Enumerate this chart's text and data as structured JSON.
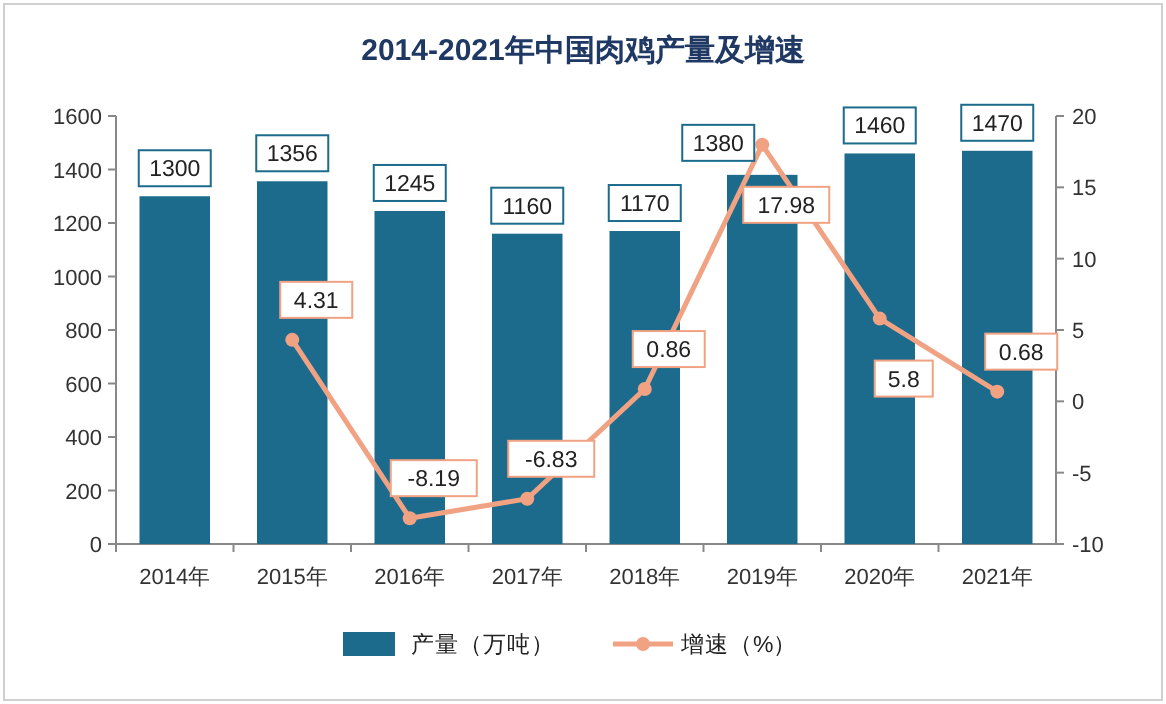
{
  "chart_data": {
    "type": "bar",
    "title": "2014-2021年中国肉鸡产量及增速",
    "categories": [
      "2014年",
      "2015年",
      "2016年",
      "2017年",
      "2018年",
      "2019年",
      "2020年",
      "2021年"
    ],
    "series": [
      {
        "name": "产量（万吨）",
        "type": "bar",
        "color": "#1c6b8c",
        "values": [
          1300,
          1356,
          1245,
          1160,
          1170,
          1380,
          1460,
          1470
        ]
      },
      {
        "name": "增速（%）",
        "type": "line",
        "axis": "y2",
        "color": "#f0a283",
        "marker": "circle",
        "values": [
          null,
          4.31,
          -8.19,
          -6.83,
          0.86,
          17.98,
          5.8,
          0.68
        ]
      }
    ],
    "ylim": [
      0,
      1600
    ],
    "yticks": [
      0,
      200,
      400,
      600,
      800,
      1000,
      1200,
      1400,
      1600
    ],
    "y2lim": [
      -10,
      20
    ],
    "y2ticks": [
      -10,
      -5,
      0,
      5,
      10,
      15,
      20
    ],
    "data_labels": true,
    "legend": "bottom",
    "grid": false
  }
}
